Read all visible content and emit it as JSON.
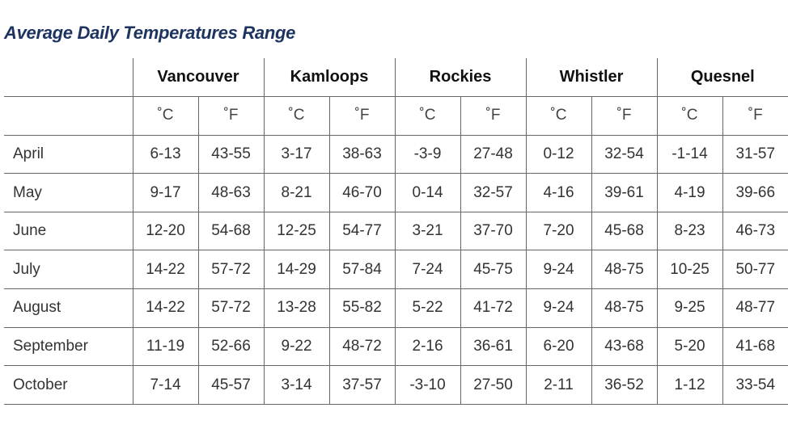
{
  "title": "Average Daily Temperatures Range",
  "table": {
    "cities": [
      "Vancouver",
      "Kamloops",
      "Rockies",
      "Whistler",
      "Quesnel"
    ],
    "units": [
      "˚C",
      "˚F",
      "˚C",
      "˚F",
      "˚C",
      "˚F",
      "˚C",
      "˚F",
      "˚C",
      "˚F"
    ],
    "rows": [
      [
        "April",
        "6-13",
        "43-55",
        "3-17",
        "38-63",
        "-3-9",
        "27-48",
        "0-12",
        "32-54",
        "-1-14",
        "31-57"
      ],
      [
        "May",
        "9-17",
        "48-63",
        "8-21",
        "46-70",
        "0-14",
        "32-57",
        "4-16",
        "39-61",
        "4-19",
        "39-66"
      ],
      [
        "June",
        "12-20",
        "54-68",
        "12-25",
        "54-77",
        "3-21",
        "37-70",
        "7-20",
        "45-68",
        "8-23",
        "46-73"
      ],
      [
        "July",
        "14-22",
        "57-72",
        "14-29",
        "57-84",
        "7-24",
        "45-75",
        "9-24",
        "48-75",
        "10-25",
        "50-77"
      ],
      [
        "August",
        "14-22",
        "57-72",
        "13-28",
        "55-82",
        "5-22",
        "41-72",
        "9-24",
        "48-75",
        "9-25",
        "48-77"
      ],
      [
        "September",
        "11-19",
        "52-66",
        "9-22",
        "48-72",
        "2-16",
        "36-61",
        "6-20",
        "43-68",
        "5-20",
        "41-68"
      ],
      [
        "October",
        "7-14",
        "45-57",
        "3-14",
        "37-57",
        "-3-10",
        "27-50",
        "2-11",
        "36-52",
        "1-12",
        "33-54"
      ]
    ]
  }
}
